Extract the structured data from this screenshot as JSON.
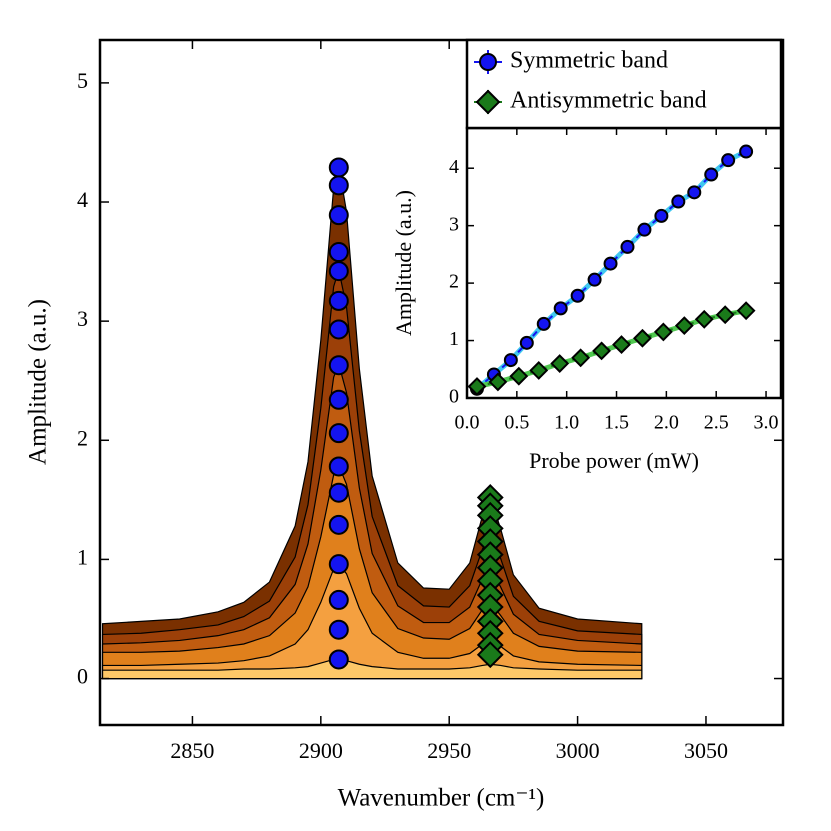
{
  "chart_data": [
    {
      "type": "line",
      "x_label": "Wavenumber (cm⁻¹)",
      "y_label": "Amplitude (a.u.)",
      "xlim": [
        2814,
        3080
      ],
      "ylim": [
        -0.39,
        5.36
      ],
      "xticks": [
        2850,
        2900,
        2950,
        3000,
        3050
      ],
      "yticks": [
        0,
        1,
        2,
        3,
        4,
        5
      ],
      "x": [
        2815,
        2830,
        2845,
        2860,
        2870,
        2880,
        2890,
        2895,
        2900,
        2905,
        2907,
        2910,
        2915,
        2920,
        2930,
        2940,
        2950,
        2958,
        2963,
        2966,
        2970,
        2975,
        2985,
        3000,
        3025
      ],
      "series": [
        {
          "color": "#7a3000",
          "values": [
            0.46,
            0.48,
            0.5,
            0.56,
            0.64,
            0.81,
            1.28,
            1.82,
            2.84,
            4.12,
            4.3,
            3.92,
            2.6,
            1.7,
            0.97,
            0.76,
            0.75,
            0.97,
            1.37,
            1.52,
            1.26,
            0.87,
            0.59,
            0.5,
            0.46
          ]
        },
        {
          "color": "#9c4008",
          "values": [
            0.37,
            0.38,
            0.41,
            0.45,
            0.52,
            0.65,
            1.02,
            1.46,
            2.27,
            3.29,
            3.43,
            3.12,
            2.08,
            1.36,
            0.78,
            0.61,
            0.6,
            0.78,
            1.09,
            1.21,
            1.01,
            0.69,
            0.48,
            0.4,
            0.37
          ]
        },
        {
          "color": "#c05c10",
          "values": [
            0.29,
            0.3,
            0.32,
            0.36,
            0.41,
            0.51,
            0.79,
            1.13,
            1.75,
            2.53,
            2.64,
            2.4,
            1.6,
            1.05,
            0.61,
            0.47,
            0.47,
            0.6,
            0.84,
            0.92,
            0.77,
            0.54,
            0.37,
            0.32,
            0.29
          ]
        },
        {
          "color": "#e0801c",
          "values": [
            0.22,
            0.22,
            0.23,
            0.26,
            0.29,
            0.36,
            0.55,
            0.77,
            1.19,
            1.71,
            1.79,
            1.63,
            1.09,
            0.72,
            0.42,
            0.34,
            0.33,
            0.42,
            0.58,
            0.64,
            0.53,
            0.38,
            0.27,
            0.23,
            0.22
          ]
        },
        {
          "color": "#f4a040",
          "values": [
            0.11,
            0.11,
            0.12,
            0.13,
            0.15,
            0.19,
            0.29,
            0.41,
            0.64,
            0.92,
            0.96,
            0.88,
            0.59,
            0.38,
            0.22,
            0.17,
            0.17,
            0.21,
            0.29,
            0.32,
            0.27,
            0.19,
            0.14,
            0.12,
            0.11
          ]
        },
        {
          "color": "#fdc868",
          "values": [
            0.07,
            0.07,
            0.07,
            0.07,
            0.08,
            0.08,
            0.09,
            0.1,
            0.13,
            0.16,
            0.16,
            0.15,
            0.12,
            0.1,
            0.08,
            0.08,
            0.08,
            0.09,
            0.11,
            0.12,
            0.11,
            0.09,
            0.08,
            0.07,
            0.07
          ]
        }
      ],
      "markers": [
        {
          "shape": "circle",
          "color": "#1414f0",
          "x": [
            2907,
            2907,
            2907,
            2907,
            2907,
            2907,
            2907,
            2907,
            2907,
            2907,
            2907,
            2907,
            2907,
            2907,
            2907,
            2907,
            2907
          ],
          "values": [
            4.29,
            4.14,
            3.89,
            3.58,
            3.42,
            3.17,
            2.93,
            2.63,
            2.34,
            2.06,
            1.78,
            1.56,
            1.29,
            0.96,
            0.66,
            0.41,
            0.16
          ]
        },
        {
          "shape": "diamond",
          "color": "#1a7a1a",
          "x": [
            2966,
            2966,
            2966,
            2966,
            2966,
            2966,
            2966,
            2966,
            2966,
            2966,
            2966,
            2966,
            2966,
            2966
          ],
          "values": [
            1.52,
            1.45,
            1.37,
            1.26,
            1.15,
            1.04,
            0.93,
            0.82,
            0.7,
            0.6,
            0.48,
            0.38,
            0.28,
            0.2
          ]
        }
      ]
    },
    {
      "type": "scatter",
      "x_label": "Probe power (mW)",
      "y_label": "Amplitude (a.u.)",
      "xlim": [
        0,
        3.15
      ],
      "ylim": [
        0,
        4.7
      ],
      "xticks": [
        {
          "value": 0,
          "label": "0.0"
        },
        0.5,
        {
          "value": 1,
          "label": "1.0"
        },
        1.5,
        {
          "value": 2,
          "label": "2.0"
        },
        2.5,
        {
          "value": 3,
          "label": "3.0"
        }
      ],
      "yticks": [
        0,
        1,
        2,
        3,
        4
      ],
      "legend": "top",
      "series": [
        {
          "name": "Symmetric band",
          "color": "#1414f0",
          "line_color": "#40c8f0",
          "shape": "circle",
          "x": [
            0.1,
            0.27,
            0.44,
            0.6,
            0.77,
            0.94,
            1.11,
            1.28,
            1.44,
            1.61,
            1.78,
            1.95,
            2.12,
            2.28,
            2.45,
            2.62,
            2.8
          ],
          "values": [
            0.16,
            0.41,
            0.66,
            0.96,
            1.29,
            1.56,
            1.78,
            2.06,
            2.34,
            2.63,
            2.93,
            3.17,
            3.42,
            3.58,
            3.89,
            4.14,
            4.29
          ]
        },
        {
          "name": "Antisymmetric band",
          "color": "#1a7a1a",
          "line_color": "#50c850",
          "shape": "diamond",
          "x": [
            0.1,
            0.31,
            0.52,
            0.72,
            0.93,
            1.14,
            1.35,
            1.55,
            1.76,
            1.97,
            2.18,
            2.38,
            2.59,
            2.8
          ],
          "values": [
            0.2,
            0.28,
            0.38,
            0.48,
            0.6,
            0.7,
            0.82,
            0.93,
            1.04,
            1.15,
            1.26,
            1.37,
            1.45,
            1.52
          ]
        }
      ]
    }
  ]
}
